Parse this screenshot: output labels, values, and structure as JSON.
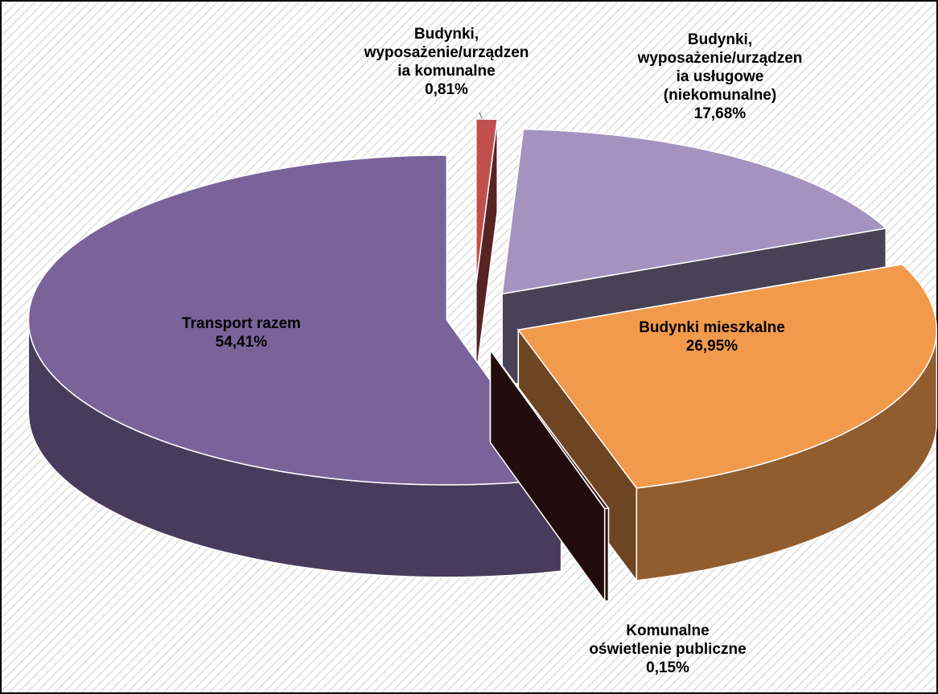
{
  "chart_data": {
    "type": "pie3d",
    "categories": [
      "Budynki,\nwyposażenie/urządzen\nia komunalne",
      "Budynki,\nwyposażenie/urządzen\nia usługowe\n(niekomunalne)",
      "Budynki mieszkalne",
      "Komunalne\noświetlenie publiczne",
      "Transport razem"
    ],
    "values": [
      0.81,
      17.68,
      26.95,
      0.15,
      54.41
    ],
    "value_labels": [
      "0,81%",
      "17,68%",
      "26,95%",
      "0,15%",
      "54,41%"
    ],
    "colors": [
      "#c0504d",
      "#a393be",
      "#f29a4c",
      "#4a1c1c",
      "#7a6399"
    ]
  }
}
